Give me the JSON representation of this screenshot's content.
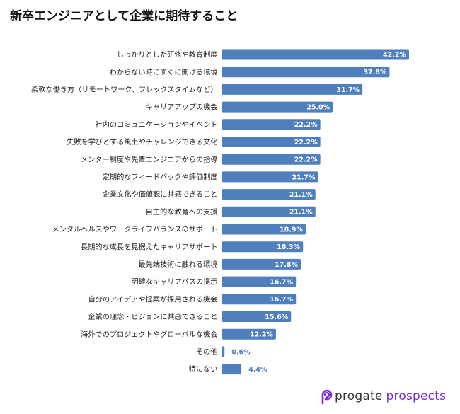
{
  "chart_data": {
    "type": "bar",
    "orientation": "horizontal",
    "title": "新卒エンジニアとして企業に期待すること",
    "categories": [
      "しっかりとした研修や教育制度",
      "わからない時にすぐに聞ける環境",
      "柔軟な働き方（リモートワーク、フレックスタイムなど）",
      "キャリアアップの機会",
      "社内のコミュニケーションやイベント",
      "失敗を学びとする風土やチャレンジできる文化",
      "メンター制度や先輩エンジニアからの指導",
      "定期的なフィードバックや評価制度",
      "企業文化や価値観に共感できること",
      "自主的な教育への支援",
      "メンタルヘルスやワークライフバランスのサポート",
      "長期的な成長を見据えたキャリアサポート",
      "最先端技術に触れる環境",
      "明確なキャリアパスの提示",
      "自分のアイデアや提案が採用される機会",
      "企業の理念・ビジョンに共感できること",
      "海外でのプロジェクトやグローバルな機会",
      "その他",
      "特にない"
    ],
    "values": [
      42.2,
      37.8,
      31.7,
      25.0,
      22.2,
      22.2,
      22.2,
      21.7,
      21.1,
      21.1,
      18.9,
      18.3,
      17.8,
      16.7,
      16.7,
      15.6,
      12.2,
      0.6,
      4.4
    ],
    "value_labels": [
      "42.2%",
      "37.8%",
      "31.7%",
      "25.0%",
      "22.2%",
      "22.2%",
      "22.2%",
      "21.7%",
      "21.1%",
      "21.1%",
      "18.9%",
      "18.3%",
      "17.8%",
      "16.7%",
      "16.7%",
      "15.6%",
      "12.2%",
      "0.6%",
      "4.4%"
    ],
    "xlim": [
      0,
      45
    ],
    "grid": false,
    "legend": "none",
    "bar_color": "#4f7fbd",
    "label_color_inside": "#ffffff",
    "label_color_outside": "#4f7fbd"
  },
  "logo": {
    "word1": "progate",
    "word2": "prospects",
    "icon": "progate-logo-icon",
    "color": "#7a2ad6"
  }
}
